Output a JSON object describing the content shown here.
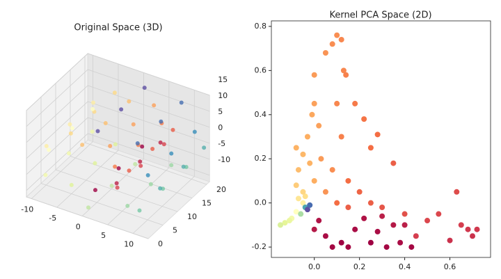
{
  "chart_data": [
    {
      "type": "scatter3d",
      "title": "Original Space (3D)",
      "x": [
        1.42,
        1.42,
        1.42,
        3.9,
        3.9,
        3.9,
        5.76,
        5.76,
        5.76,
        6.35,
        6.35,
        6.35,
        5.28,
        5.28,
        5.28,
        2.6,
        2.6,
        2.6,
        -1.16,
        -1.16,
        -1.16,
        -5.12,
        -5.12,
        -5.12,
        -8.2,
        -8.2,
        -8.2,
        -9.47,
        -9.47,
        -9.47,
        -8.39,
        -8.39,
        -8.39,
        -4.99,
        -4.99,
        -4.99,
        0.05,
        0.05,
        0.05,
        6.04,
        6.04,
        6.04,
        10.13,
        10.13,
        10.13,
        12.47,
        12.47,
        12.47,
        11.8,
        11.8,
        11.8,
        8.03,
        8.03,
        8.03,
        1.91,
        1.91,
        1.91
      ],
      "y": [
        2,
        10,
        18,
        5,
        13,
        20,
        2,
        10,
        18,
        5,
        13,
        20,
        2,
        10,
        18,
        5,
        13,
        20,
        2,
        10,
        18,
        5,
        13,
        20,
        2,
        10,
        18,
        5,
        13,
        20,
        2,
        10,
        18,
        5,
        13,
        20,
        2,
        10,
        18,
        5,
        13,
        20,
        2,
        10,
        18,
        5,
        13,
        20,
        2,
        10,
        18,
        5,
        13,
        20,
        2,
        10,
        18
      ],
      "z": [
        -4.79,
        -4.79,
        -4.79,
        -3.88,
        -3.88,
        -3.88,
        -1.68,
        -1.68,
        -1.68,
        1.4,
        1.4,
        1.4,
        4.6,
        4.6,
        4.6,
        7.04,
        7.04,
        7.04,
        7.92,
        7.92,
        7.92,
        6.79,
        6.79,
        6.79,
        3.71,
        3.71,
        3.71,
        -0.71,
        -0.71,
        -0.71,
        -5.44,
        -5.44,
        -5.44,
        -9.24,
        -9.24,
        -9.24,
        -11,
        -11,
        -11,
        -9.79,
        -9.79,
        -9.79,
        -6.44,
        -6.44,
        -6.44,
        -0.83,
        -0.83,
        -0.83,
        5.46,
        5.46,
        5.46,
        10.85,
        10.85,
        10.85,
        13.87,
        13.87,
        13.87
      ],
      "c": [
        5,
        5,
        5,
        5.5,
        5.5,
        5.5,
        6,
        6,
        6,
        6.5,
        6.5,
        6.5,
        7,
        7,
        7,
        7.5,
        7.5,
        7.5,
        8,
        8,
        8,
        8.5,
        8.5,
        8.5,
        9,
        9,
        9,
        9.5,
        9.5,
        9.5,
        10,
        10,
        10,
        10.5,
        10.5,
        10.5,
        11,
        11,
        11,
        11.5,
        11.5,
        11.5,
        12,
        12,
        12,
        12.5,
        12.5,
        12.5,
        13,
        13,
        13,
        13.5,
        13.5,
        13.5,
        14,
        14,
        14
      ],
      "xlim": [
        -11,
        13
      ],
      "ylim": [
        0,
        21
      ],
      "zlim": [
        -12,
        15
      ],
      "xticks": [
        -10,
        -5,
        0,
        5,
        10
      ],
      "yticks": [
        0,
        5,
        10,
        15,
        20
      ],
      "zticks": [
        -10,
        -5,
        0,
        5,
        10,
        15
      ],
      "colormap": [
        "#9e0142",
        "#d53e4f",
        "#f46d43",
        "#fdae61",
        "#fee08b",
        "#ffffbf",
        "#e6f598",
        "#abdda4",
        "#66c2a5",
        "#3288bd",
        "#5e4fa2"
      ]
    },
    {
      "type": "scatter",
      "title": "Kernel PCA Space (2D)",
      "x": [
        -0.05,
        -0.07,
        -0.04,
        -0.08,
        -0.1,
        -0.13,
        -0.15,
        -0.11,
        -0.06,
        -0.04,
        -0.03,
        -0.02,
        -0.05,
        -0.08,
        -0.07,
        -0.05,
        -0.08,
        -0.03,
        -0.01,
        0.0,
        0.0,
        0.05,
        0.08,
        0.1,
        0.12,
        0.13,
        0.14,
        0.1,
        0.02,
        0.03,
        0.08,
        0.12,
        0.18,
        0.22,
        0.25,
        0.28,
        0.05,
        0.0,
        -0.02,
        0.15,
        0.2,
        0.25,
        0.3,
        0.35,
        0.4,
        0.5,
        0.55,
        0.63,
        0.65,
        0.72,
        0.7,
        0.68,
        0.6,
        0.45,
        0.1,
        0.15,
        0.02,
        0.05,
        0.08,
        0.12,
        0.18,
        0.22,
        0.28,
        0.32,
        0.38,
        0.43,
        0.25,
        0.15,
        0.35,
        0.3,
        0.4,
        0.0
      ],
      "y": [
        0.0,
        0.02,
        0.03,
        -0.04,
        -0.07,
        -0.09,
        -0.1,
        -0.08,
        -0.05,
        -0.02,
        -0.03,
        -0.01,
        0.05,
        0.08,
        0.15,
        0.22,
        0.25,
        0.3,
        0.4,
        0.45,
        0.58,
        0.68,
        0.72,
        0.76,
        0.74,
        0.6,
        0.58,
        0.45,
        0.35,
        0.2,
        0.15,
        0.3,
        0.45,
        0.38,
        0.25,
        0.31,
        0.05,
        0.1,
        0.18,
        0.1,
        0.05,
        0.0,
        -0.02,
        0.18,
        -0.05,
        -0.08,
        -0.05,
        0.05,
        -0.1,
        -0.12,
        -0.15,
        -0.12,
        -0.17,
        -0.15,
        0.0,
        -0.02,
        -0.08,
        -0.15,
        -0.2,
        -0.18,
        -0.12,
        -0.07,
        -0.13,
        -0.2,
        -0.18,
        -0.2,
        -0.18,
        -0.2,
        -0.1,
        -0.06,
        -0.1,
        -0.12
      ],
      "c": [
        0.45,
        0.42,
        0.4,
        0.5,
        0.55,
        0.6,
        0.62,
        0.58,
        0.7,
        0.85,
        1.0,
        0.95,
        0.38,
        0.36,
        0.33,
        0.32,
        0.31,
        0.3,
        0.29,
        0.28,
        0.27,
        0.26,
        0.25,
        0.25,
        0.24,
        0.24,
        0.23,
        0.24,
        0.28,
        0.27,
        0.25,
        0.23,
        0.22,
        0.21,
        0.2,
        0.2,
        0.26,
        0.3,
        0.31,
        0.2,
        0.18,
        0.17,
        0.15,
        0.17,
        0.14,
        0.12,
        0.12,
        0.13,
        0.1,
        0.09,
        0.08,
        0.09,
        0.08,
        0.1,
        0.2,
        0.17,
        0.03,
        0.02,
        0.01,
        0.0,
        0.02,
        0.03,
        0.02,
        0.01,
        0.02,
        0.01,
        0.0,
        0.01,
        0.04,
        0.05,
        0.05,
        0.04
      ],
      "xlim": [
        -0.19,
        0.78
      ],
      "ylim": [
        -0.247,
        0.825
      ],
      "xticks": [
        {
          "value": 0,
          "label": "0.0"
        },
        0.2,
        0.4,
        0.6
      ],
      "yticks": [
        -0.2,
        {
          "value": 0,
          "label": "0.0"
        },
        0.2,
        0.4,
        0.6,
        0.8
      ],
      "colormap": [
        "#9e0142",
        "#d53e4f",
        "#f46d43",
        "#fdae61",
        "#fee08b",
        "#ffffbf",
        "#e6f598",
        "#abdda4",
        "#66c2a5",
        "#3288bd",
        "#5e4fa2"
      ]
    }
  ]
}
